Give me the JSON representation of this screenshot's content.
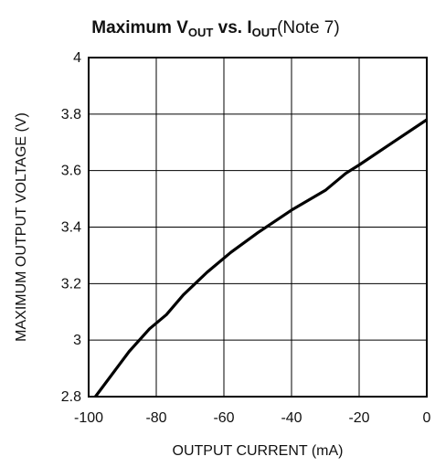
{
  "chart_data": {
    "type": "line",
    "title": {
      "main": "Maximum ",
      "v": "V",
      "v_sub": "OUT",
      "vs": " vs. ",
      "i": "I",
      "i_sub": "OUT",
      "note": "(Note 7)"
    },
    "xlabel": "OUTPUT CURRENT (mA)",
    "ylabel": "MAXIMUM OUTPUT VOLTAGE (V)",
    "xlim": [
      -100,
      0
    ],
    "ylim": [
      2.8,
      4.0
    ],
    "x_ticks": [
      -100,
      -80,
      -60,
      -40,
      -20,
      0
    ],
    "x_tick_labels": [
      "-100",
      "-80",
      "-60",
      "-40",
      "-20",
      "0"
    ],
    "y_ticks": [
      2.8,
      3.0,
      3.2,
      3.4,
      3.6,
      3.8,
      4.0
    ],
    "y_tick_labels": [
      "2.8",
      "3",
      "3.2",
      "3.4",
      "3.6",
      "3.8",
      "4"
    ],
    "grid": true,
    "series": [
      {
        "color": "#000000",
        "x": [
          -98,
          -88,
          -82,
          -77,
          -72,
          -65,
          -58,
          -50,
          -40,
          -30,
          -24,
          -20,
          -10,
          0
        ],
        "y": [
          2.79,
          2.96,
          3.04,
          3.09,
          3.16,
          3.24,
          3.31,
          3.38,
          3.46,
          3.53,
          3.59,
          3.62,
          3.7,
          3.78
        ]
      }
    ]
  }
}
